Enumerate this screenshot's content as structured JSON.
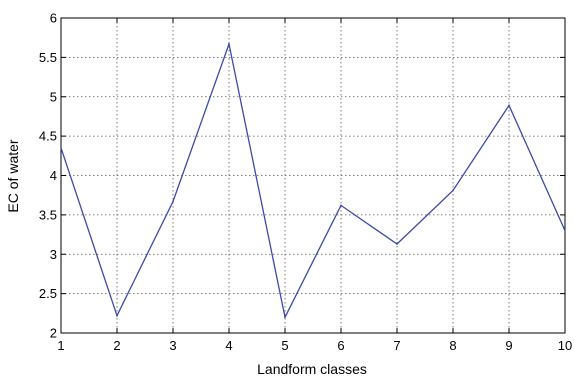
{
  "chart_data": {
    "type": "line",
    "xlabel": "Landform classes",
    "ylabel": "EC of water",
    "xlim": [
      1,
      10
    ],
    "ylim": [
      2,
      6
    ],
    "x_ticks": [
      "1",
      "2",
      "3",
      "4",
      "5",
      "6",
      "7",
      "8",
      "9",
      "10"
    ],
    "y_ticks": [
      "2",
      "2.5",
      "3",
      "3.5",
      "4",
      "4.5",
      "5",
      "5.5",
      "6"
    ],
    "grid": true,
    "series": [
      {
        "x": [
          1,
          2,
          3,
          4,
          5,
          6,
          7,
          8,
          9,
          10
        ],
        "values": [
          4.35,
          2.22,
          3.67,
          5.67,
          2.2,
          3.62,
          3.13,
          3.81,
          4.89,
          3.3
        ],
        "color": "#3b4aa8"
      }
    ]
  }
}
